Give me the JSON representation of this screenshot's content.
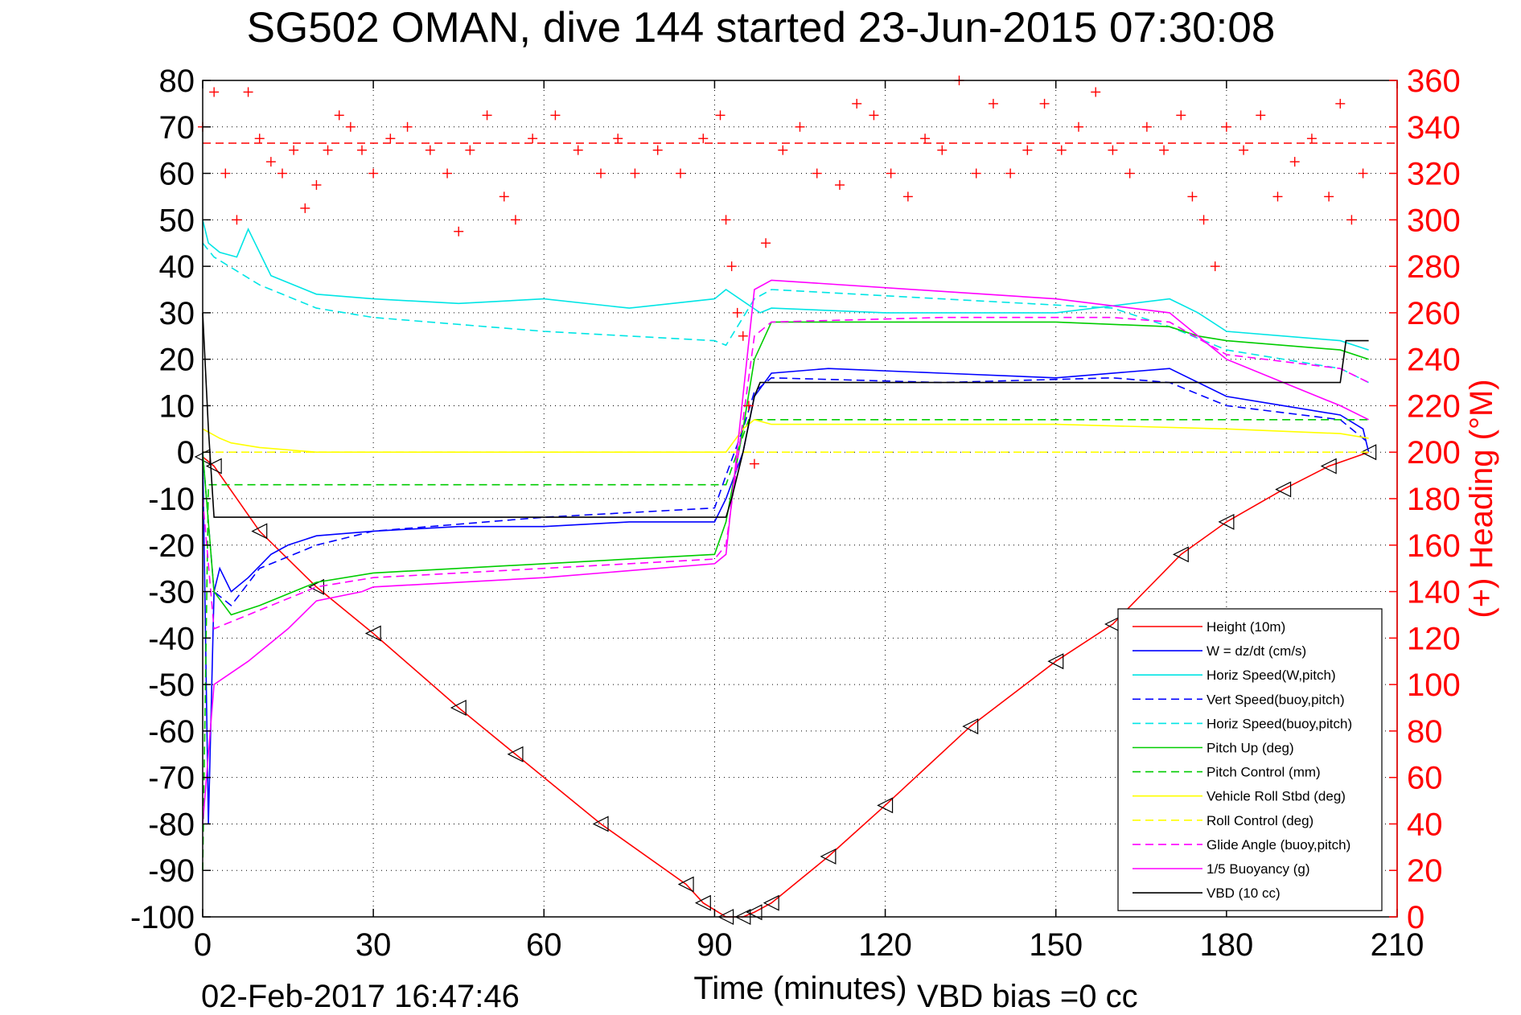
{
  "chart_data": {
    "type": "line",
    "title": "SG502 OMAN, dive 144 started 23-Jun-2015 07:30:08",
    "xlabel": "Time (minutes)",
    "ylabel": "",
    "y2label": "(+) Heading (°M)",
    "xlim": [
      0,
      210
    ],
    "ylim": [
      -100,
      80
    ],
    "y2lim": [
      0,
      360
    ],
    "xticks": [
      0,
      30,
      60,
      90,
      120,
      150,
      180,
      210
    ],
    "yticks": [
      80,
      70,
      60,
      50,
      40,
      30,
      20,
      10,
      0,
      -10,
      -20,
      -30,
      -40,
      -50,
      -60,
      -70,
      -80,
      -90,
      -100
    ],
    "y2ticks": [
      360,
      340,
      320,
      300,
      280,
      260,
      240,
      220,
      200,
      180,
      160,
      140,
      120,
      100,
      80,
      60,
      40,
      20,
      0
    ],
    "grid": true,
    "legend_position": "bottom-right",
    "footer_left": "02-Feb-2017 16:47:46",
    "footer_right": "VBD bias =0 cc",
    "reference_lines": [
      {
        "axis": "y2",
        "value": 333,
        "color": "#ff0000",
        "style": "dashed"
      }
    ],
    "series": [
      {
        "name": "Height (10m)",
        "color": "#ff0000",
        "style": "solid",
        "axis": "y",
        "x": [
          0,
          2,
          10,
          20,
          30,
          45,
          55,
          70,
          85,
          88,
          92,
          95,
          97,
          100,
          110,
          120,
          135,
          150,
          160,
          172,
          180,
          190,
          198,
          205
        ],
        "y": [
          -1,
          -3,
          -17,
          -29,
          -39,
          -55,
          -65,
          -80,
          -93,
          -97,
          -100,
          -100,
          -99,
          -97,
          -87,
          -76,
          -59,
          -45,
          -37,
          -22,
          -15,
          -8,
          -3,
          0
        ]
      },
      {
        "name": "W = dz/dt (cm/s)",
        "color": "#0000ff",
        "style": "solid",
        "axis": "y",
        "x": [
          0,
          1,
          2,
          3,
          5,
          8,
          12,
          15,
          20,
          30,
          45,
          60,
          75,
          90,
          92,
          95,
          97,
          100,
          110,
          130,
          150,
          170,
          180,
          190,
          200,
          204,
          205
        ],
        "y": [
          0,
          -80,
          -30,
          -25,
          -30,
          -27,
          -22,
          -20,
          -18,
          -17,
          -16,
          -16,
          -15,
          -15,
          -10,
          0,
          12,
          17,
          18,
          17,
          16,
          18,
          12,
          10,
          8,
          5,
          0
        ]
      },
      {
        "name": "Horiz Speed(W,pitch)",
        "color": "#00e5e5",
        "style": "solid",
        "axis": "y",
        "x": [
          0,
          1,
          3,
          6,
          8,
          12,
          20,
          30,
          45,
          60,
          75,
          90,
          92,
          98,
          100,
          120,
          150,
          170,
          175,
          180,
          200,
          205
        ],
        "y": [
          50,
          45,
          43,
          42,
          48,
          38,
          34,
          33,
          32,
          33,
          31,
          33,
          35,
          30,
          31,
          30,
          30,
          33,
          30,
          26,
          24,
          22
        ]
      },
      {
        "name": "Vert Speed(buoy,pitch)",
        "color": "#0000ff",
        "style": "dashed",
        "axis": "y",
        "x": [
          0,
          2,
          5,
          10,
          20,
          30,
          60,
          90,
          92,
          95,
          97,
          100,
          130,
          160,
          170,
          180,
          200,
          205
        ],
        "y": [
          0,
          -30,
          -33,
          -25,
          -20,
          -17,
          -14,
          -12,
          -5,
          5,
          13,
          16,
          15,
          16,
          15,
          10,
          7,
          2
        ]
      },
      {
        "name": "Horiz Speed(buoy,pitch)",
        "color": "#00e5e5",
        "style": "dashed",
        "axis": "y",
        "x": [
          0,
          2,
          10,
          20,
          25,
          30,
          60,
          90,
          92,
          97,
          100,
          130,
          160,
          170,
          180,
          200,
          205
        ],
        "y": [
          45,
          42,
          36,
          31,
          30,
          29,
          26,
          24,
          23,
          33,
          35,
          33,
          31,
          27,
          22,
          18,
          15
        ]
      },
      {
        "name": "Pitch Up (deg)",
        "color": "#00cc00",
        "style": "solid",
        "axis": "y",
        "x": [
          0,
          2,
          5,
          10,
          20,
          30,
          45,
          60,
          75,
          90,
          92,
          95,
          97,
          100,
          120,
          150,
          170,
          175,
          180,
          200,
          205
        ],
        "y": [
          0,
          -30,
          -35,
          -33,
          -28,
          -26,
          -25,
          -24,
          -23,
          -22,
          -15,
          5,
          20,
          28,
          28,
          28,
          27,
          25,
          24,
          22,
          20
        ]
      },
      {
        "name": "Pitch Control (mm)",
        "color": "#00cc00",
        "style": "dashed",
        "axis": "y",
        "x": [
          0,
          1,
          2,
          91,
          92,
          96,
          97,
          205
        ],
        "y": [
          -90,
          -7,
          -7,
          -7,
          -7,
          7,
          7,
          7
        ]
      },
      {
        "name": "Vehicle Roll Stbd (deg)",
        "color": "#ffff00",
        "style": "solid",
        "axis": "y",
        "x": [
          0,
          3,
          5,
          10,
          20,
          40,
          60,
          90,
          92,
          95,
          97,
          100,
          150,
          180,
          200,
          205
        ],
        "y": [
          5,
          3,
          2,
          1,
          0,
          0,
          0,
          0,
          0,
          5,
          7,
          6,
          6,
          5,
          4,
          3
        ]
      },
      {
        "name": "Roll Control (deg)",
        "color": "#ffff00",
        "style": "dashed",
        "axis": "y",
        "x": [
          0,
          205
        ],
        "y": [
          0,
          0
        ]
      },
      {
        "name": "Glide Angle (buoy,pitch)",
        "color": "#ff00ff",
        "style": "dashed",
        "axis": "y",
        "x": [
          0,
          2,
          10,
          20,
          30,
          60,
          90,
          92,
          97,
          100,
          130,
          160,
          170,
          180,
          200,
          205
        ],
        "y": [
          -10,
          -38,
          -34,
          -29,
          -27,
          -25,
          -23,
          -20,
          25,
          28,
          29,
          29,
          28,
          21,
          18,
          15
        ]
      },
      {
        "name": "1/5 Buoyancy (g)",
        "color": "#ff00ff",
        "style": "solid",
        "axis": "y",
        "x": [
          0,
          2,
          8,
          15,
          20,
          28,
          30,
          60,
          90,
          92,
          97,
          100,
          150,
          170,
          180,
          190,
          200,
          205
        ],
        "y": [
          -80,
          -50,
          -45,
          -38,
          -32,
          -30,
          -29,
          -27,
          -24,
          -22,
          35,
          37,
          33,
          30,
          20,
          15,
          10,
          7
        ]
      },
      {
        "name": "VBD (10 cc)",
        "color": "#000000",
        "style": "solid",
        "axis": "y",
        "x": [
          0,
          1,
          2,
          92,
          93,
          95,
          97,
          98,
          200,
          201,
          205
        ],
        "y": [
          30,
          5,
          -14,
          -14,
          -10,
          0,
          12,
          15,
          15,
          24,
          24
        ]
      },
      {
        "name": "(+) Heading",
        "color": "#ff0000",
        "style": "markers",
        "marker": "+",
        "axis": "y2",
        "x": [
          0,
          2,
          4,
          6,
          8,
          10,
          12,
          14,
          16,
          18,
          20,
          22,
          24,
          26,
          28,
          30,
          33,
          36,
          40,
          43,
          45,
          47,
          50,
          53,
          55,
          58,
          62,
          66,
          70,
          73,
          76,
          80,
          84,
          88,
          91,
          92,
          93,
          94,
          95,
          96,
          97,
          99,
          102,
          105,
          108,
          112,
          115,
          118,
          121,
          124,
          127,
          130,
          133,
          136,
          139,
          142,
          145,
          148,
          151,
          154,
          157,
          160,
          163,
          166,
          169,
          172,
          174,
          176,
          178,
          180,
          183,
          186,
          189,
          192,
          195,
          198,
          200,
          202,
          204
        ],
        "y": [
          340,
          355,
          320,
          300,
          355,
          335,
          325,
          320,
          330,
          305,
          315,
          330,
          345,
          340,
          330,
          320,
          335,
          340,
          330,
          320,
          295,
          330,
          345,
          310,
          300,
          335,
          345,
          330,
          320,
          335,
          320,
          330,
          320,
          335,
          345,
          300,
          280,
          260,
          250,
          220,
          195,
          290,
          330,
          340,
          320,
          315,
          350,
          345,
          320,
          310,
          335,
          330,
          360,
          320,
          350,
          320,
          330,
          350,
          330,
          340,
          355,
          330,
          320,
          340,
          330,
          345,
          310,
          300,
          280,
          340,
          330,
          345,
          310,
          325,
          335,
          310,
          350,
          300,
          320
        ]
      }
    ]
  }
}
